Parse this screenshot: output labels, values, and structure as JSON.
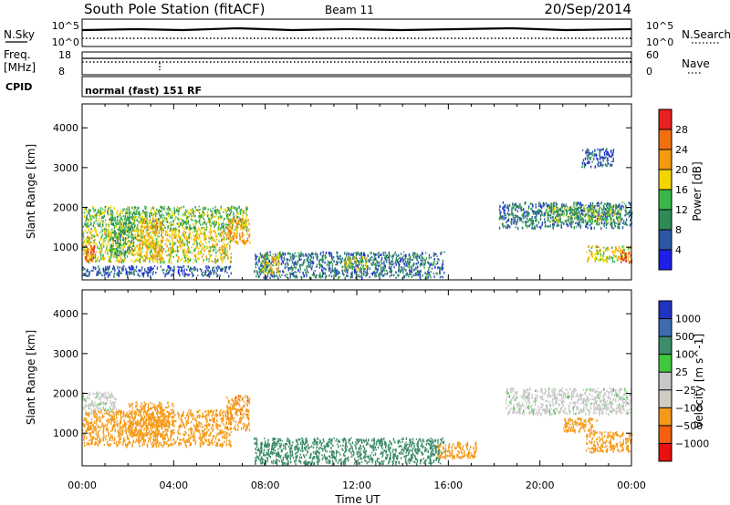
{
  "header": {
    "station": "South Pole Station (fitACF)",
    "beam": "Beam 11",
    "date": "20/Sep/2014"
  },
  "noise_panel": {
    "left_label": "N.Sky",
    "right_label": "N.Search",
    "left_ticks": [
      "10^5",
      "10^0"
    ],
    "right_ticks": [
      "10^5",
      "10^0"
    ]
  },
  "freq_panel": {
    "left_label_line1": "Freq.",
    "left_label_line2": "[MHz]",
    "right_label": "Nave",
    "left_ticks": [
      "18",
      "8"
    ],
    "right_ticks": [
      "60",
      "0"
    ]
  },
  "cpid_panel": {
    "label": "CPID",
    "text": "normal (fast) 151 RF"
  },
  "colors": {
    "power": [
      "#1e1ee6",
      "#2d57a6",
      "#2e8b57",
      "#3ab54a",
      "#f2d600",
      "#f59a0c",
      "#f07010",
      "#e82020"
    ],
    "velocity": [
      "#e81010",
      "#f06010",
      "#f59a18",
      "#d0cec4",
      "#c8c8c8",
      "#40c840",
      "#3d8c6a",
      "#3d6bb0",
      "#2233c0"
    ]
  },
  "chart_data": [
    {
      "type": "heatmap",
      "name": "power",
      "ylabel": "Slant Range [km]",
      "ylim": [
        180,
        4600
      ],
      "yticks": [
        1000,
        2000,
        3000,
        4000
      ],
      "xlim": [
        0,
        24
      ],
      "xticks": [
        "00:00",
        "04:00",
        "08:00",
        "12:00",
        "16:00",
        "20:00",
        "00:00"
      ],
      "colorbar": {
        "label": "Power [dB]",
        "tick_labels": [
          "4",
          "8",
          "12",
          "16",
          "20",
          "24",
          "28"
        ],
        "range": [
          0,
          32
        ]
      },
      "regions": [
        {
          "t0": 0.0,
          "t1": 7.2,
          "r_lo": 1450,
          "r_hi": 2050,
          "value": 14
        },
        {
          "t0": 0.0,
          "t1": 6.5,
          "r_lo": 650,
          "r_hi": 1450,
          "value": 18
        },
        {
          "t0": 0.1,
          "t1": 0.6,
          "r_lo": 650,
          "r_hi": 1050,
          "value": 26
        },
        {
          "t0": 1.2,
          "t1": 2.3,
          "r_lo": 800,
          "r_hi": 1800,
          "value": 12
        },
        {
          "t0": 2.5,
          "t1": 3.5,
          "r_lo": 700,
          "r_hi": 1750,
          "value": 20
        },
        {
          "t0": 6.3,
          "t1": 7.3,
          "r_lo": 1100,
          "r_hi": 1750,
          "value": 22
        },
        {
          "t0": 0.0,
          "t1": 6.5,
          "r_lo": 300,
          "r_hi": 550,
          "value": 6
        },
        {
          "t0": 7.5,
          "t1": 15.8,
          "r_lo": 250,
          "r_hi": 900,
          "value": 8
        },
        {
          "t0": 7.8,
          "t1": 8.6,
          "r_lo": 350,
          "r_hi": 850,
          "value": 20
        },
        {
          "t0": 11.4,
          "t1": 12.4,
          "r_lo": 450,
          "r_hi": 800,
          "value": 18
        },
        {
          "t0": 18.2,
          "t1": 24.0,
          "r_lo": 1500,
          "r_hi": 2150,
          "value": 8
        },
        {
          "t0": 20.3,
          "t1": 23.5,
          "r_lo": 1650,
          "r_hi": 2050,
          "value": 14
        },
        {
          "t0": 22.0,
          "t1": 24.0,
          "r_lo": 650,
          "r_hi": 1050,
          "value": 18
        },
        {
          "t0": 23.5,
          "t1": 24.0,
          "r_lo": 650,
          "r_hi": 900,
          "value": 29
        },
        {
          "t0": 21.8,
          "t1": 23.2,
          "r_lo": 3050,
          "r_hi": 3500,
          "value": 6
        }
      ]
    },
    {
      "type": "heatmap",
      "name": "velocity",
      "ylabel": "Slant Range [km]",
      "ylim": [
        180,
        4600
      ],
      "yticks": [
        1000,
        2000,
        3000,
        4000
      ],
      "xlim": [
        0,
        24
      ],
      "xticks": [
        "00:00",
        "04:00",
        "08:00",
        "12:00",
        "16:00",
        "20:00",
        "00:00"
      ],
      "xlabel": "Time UT",
      "colorbar": {
        "label": "Velocity [m s^-1]",
        "tick_labels": [
          "1000",
          "500",
          "100",
          "25",
          "−25",
          "−100",
          "−500",
          "−1000"
        ]
      },
      "regions": [
        {
          "t0": 0.0,
          "t1": 1.5,
          "r_lo": 1500,
          "r_hi": 2050,
          "value": 0
        },
        {
          "t0": 0.0,
          "t1": 6.5,
          "r_lo": 700,
          "r_hi": 1600,
          "value": -300
        },
        {
          "t0": 2.0,
          "t1": 4.0,
          "r_lo": 950,
          "r_hi": 1800,
          "value": -250
        },
        {
          "t0": 6.3,
          "t1": 7.3,
          "r_lo": 1100,
          "r_hi": 2000,
          "value": -400
        },
        {
          "t0": 7.5,
          "t1": 15.8,
          "r_lo": 250,
          "r_hi": 900,
          "value": 200
        },
        {
          "t0": 15.5,
          "t1": 17.2,
          "r_lo": 400,
          "r_hi": 800,
          "value": -300
        },
        {
          "t0": 18.5,
          "t1": 24.0,
          "r_lo": 1500,
          "r_hi": 2150,
          "value": 0
        },
        {
          "t0": 21.0,
          "t1": 22.5,
          "r_lo": 1050,
          "r_hi": 1400,
          "value": -300
        },
        {
          "t0": 22.0,
          "t1": 24.0,
          "r_lo": 550,
          "r_hi": 1050,
          "value": -350
        }
      ]
    }
  ]
}
